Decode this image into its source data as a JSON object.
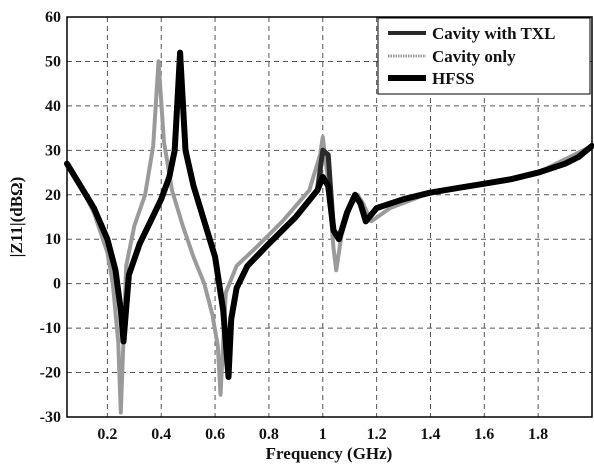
{
  "chart_data": {
    "type": "line",
    "xlabel": "Frequency (GHz)",
    "ylabel": "|Z11|(dBΩ)",
    "xlim": [
      0.05,
      2.0
    ],
    "ylim": [
      -30,
      60
    ],
    "xticks": [
      0.2,
      0.4,
      0.6,
      0.8,
      1.0,
      1.2,
      1.4,
      1.6,
      1.8
    ],
    "xtick_labels": [
      "0.2",
      "0.4",
      "0.6",
      "0.8",
      "1",
      "1.2",
      "1.4",
      "1.6",
      "1.8"
    ],
    "yticks": [
      -30,
      -20,
      -10,
      0,
      10,
      20,
      30,
      40,
      50,
      60
    ],
    "ytick_labels": [
      "-30",
      "-20",
      "-10",
      "0",
      "10",
      "20",
      "30",
      "40",
      "50",
      "60"
    ],
    "grid": true,
    "legend_position": "top-right",
    "series": [
      {
        "name": "Cavity with TXL",
        "color": "#2a2a2a",
        "x": [
          0.05,
          0.1,
          0.15,
          0.2,
          0.23,
          0.25,
          0.26,
          0.28,
          0.32,
          0.36,
          0.4,
          0.43,
          0.45,
          0.47,
          0.49,
          0.52,
          0.56,
          0.6,
          0.63,
          0.65,
          0.66,
          0.68,
          0.72,
          0.8,
          0.9,
          0.98,
          1.0,
          1.02,
          1.04,
          1.06,
          1.09,
          1.12,
          1.14,
          1.16,
          1.2,
          1.3,
          1.4,
          1.5,
          1.6,
          1.7,
          1.8,
          1.9,
          1.95,
          2.0
        ],
        "y": [
          27,
          22,
          17,
          10,
          3,
          -6,
          -13,
          2,
          9,
          14,
          19,
          24,
          30,
          52,
          30,
          22,
          14,
          6,
          -6,
          -21,
          -8,
          -1,
          4,
          9,
          15,
          21,
          30,
          29,
          12,
          10,
          16,
          20,
          18,
          14,
          17,
          19,
          20.5,
          21.5,
          22.5,
          23.5,
          25,
          27,
          28.5,
          31
        ]
      },
      {
        "name": "Cavity only",
        "color": "#9a9a9a",
        "x": [
          0.05,
          0.1,
          0.15,
          0.2,
          0.22,
          0.24,
          0.25,
          0.27,
          0.3,
          0.34,
          0.37,
          0.39,
          0.41,
          0.44,
          0.48,
          0.52,
          0.56,
          0.59,
          0.61,
          0.62,
          0.64,
          0.68,
          0.75,
          0.85,
          0.95,
          0.99,
          1.0,
          1.02,
          1.04,
          1.05,
          1.07,
          1.1,
          1.13,
          1.15,
          1.18,
          1.25,
          1.4,
          1.6,
          1.8,
          2.0
        ],
        "y": [
          27,
          22,
          16,
          7,
          0,
          -13,
          -29,
          4,
          13,
          20,
          31,
          50,
          32,
          21,
          13,
          6,
          0,
          -7,
          -14,
          -25,
          -2,
          4,
          8,
          14,
          21,
          29,
          33,
          23,
          8,
          3,
          11,
          17,
          20,
          18,
          14,
          17,
          20.5,
          22.5,
          25,
          31
        ]
      },
      {
        "name": "HFSS",
        "color": "#000000",
        "x": [
          0.05,
          0.1,
          0.15,
          0.2,
          0.23,
          0.25,
          0.26,
          0.28,
          0.32,
          0.36,
          0.4,
          0.43,
          0.45,
          0.47,
          0.49,
          0.52,
          0.56,
          0.6,
          0.63,
          0.65,
          0.66,
          0.68,
          0.72,
          0.8,
          0.9,
          0.98,
          1.0,
          1.02,
          1.04,
          1.06,
          1.09,
          1.12,
          1.14,
          1.16,
          1.2,
          1.3,
          1.4,
          1.5,
          1.6,
          1.7,
          1.8,
          1.9,
          1.95,
          2.0
        ],
        "y": [
          27,
          22,
          17,
          10,
          3,
          -6,
          -13,
          2,
          9,
          14,
          19,
          24,
          30,
          52,
          30,
          22,
          14,
          6,
          -6,
          -21,
          -8,
          -1,
          4,
          9,
          15,
          21,
          24,
          22,
          12,
          10,
          16,
          20,
          18,
          14,
          17,
          19,
          20.5,
          21.5,
          22.5,
          23.5,
          25,
          27,
          28.5,
          31
        ]
      }
    ]
  }
}
